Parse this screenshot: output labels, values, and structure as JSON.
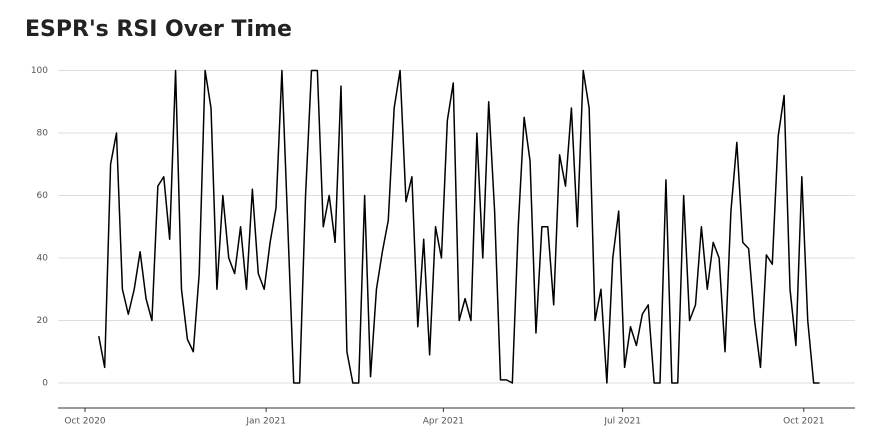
{
  "chart_data": {
    "type": "line",
    "title": "ESPR's RSI Over Time",
    "series": [
      {
        "color": "#000000",
        "values": [
          15,
          5,
          70,
          80,
          30,
          22,
          30,
          42,
          27,
          20,
          63,
          66,
          46,
          100,
          30,
          14,
          10,
          35,
          100,
          88,
          30,
          60,
          40,
          35,
          50,
          30,
          62,
          35,
          30,
          45,
          56,
          100,
          50,
          0,
          0,
          60,
          100,
          100,
          50,
          60,
          45,
          95,
          10,
          0,
          0,
          60,
          2,
          30,
          42,
          52,
          88,
          100,
          58,
          66,
          18,
          46,
          9,
          50,
          40,
          84,
          96,
          20,
          27,
          20,
          80,
          40,
          90,
          55,
          1,
          1,
          0,
          50,
          85,
          71,
          16,
          50,
          50,
          25,
          73,
          63,
          88,
          50,
          100,
          88,
          20,
          30,
          0,
          40,
          55,
          5,
          18,
          12,
          22,
          25,
          0,
          0,
          65,
          0,
          0,
          60,
          20,
          25,
          50,
          30,
          45,
          40,
          10,
          55,
          77,
          45,
          43,
          20,
          5,
          41,
          38,
          79,
          92,
          30,
          12,
          66,
          20,
          0,
          0
        ]
      }
    ],
    "xlim": [
      -6.9,
      128
    ],
    "xticks": [
      {
        "value": -2.33,
        "label": "Oct 2020"
      },
      {
        "value": 28.33,
        "label": "Jan 2021"
      },
      {
        "value": 58.33,
        "label": "Apr 2021"
      },
      {
        "value": 88.67,
        "label": "Jul 2021"
      },
      {
        "value": 119.33,
        "label": "Oct 2021"
      }
    ],
    "ylim": [
      -8,
      104
    ],
    "yticks": [
      0,
      20,
      40,
      60,
      80,
      100
    ],
    "grid": true
  }
}
